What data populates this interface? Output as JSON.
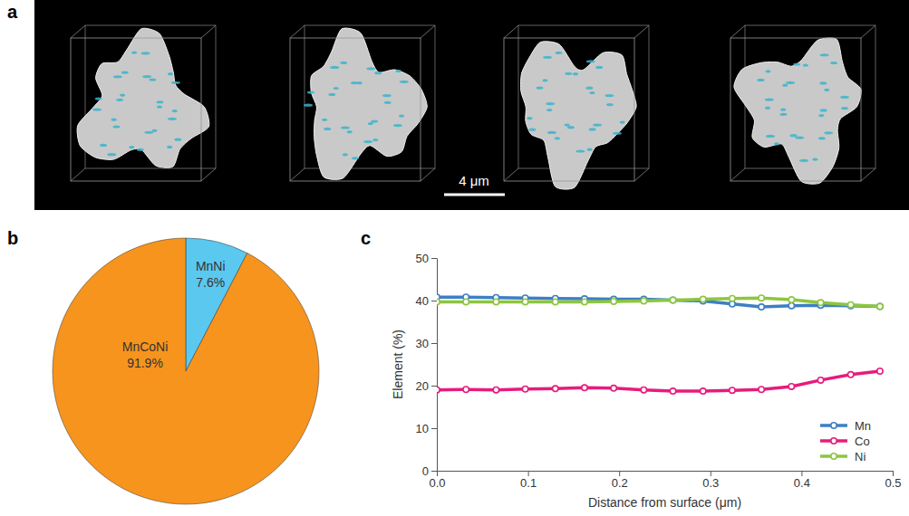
{
  "image_panel": {
    "label": "a",
    "scale_bar": "4 μm"
  },
  "chart_data": [
    {
      "type": "pie",
      "label": "b",
      "categories": [
        "MnNi",
        "MnCoNi"
      ],
      "values": [
        7.6,
        91.9
      ],
      "value_labels": [
        "7.6%",
        "91.9%"
      ],
      "colors": [
        "#5bc8f0",
        "#f7941d"
      ],
      "data_labels": true
    },
    {
      "type": "line",
      "label": "c",
      "x": [
        0,
        0.032,
        0.065,
        0.097,
        0.13,
        0.162,
        0.194,
        0.227,
        0.259,
        0.292,
        0.324,
        0.356,
        0.389,
        0.421,
        0.454,
        0.486
      ],
      "series": [
        {
          "name": "Mn",
          "color": "#3d7fc4",
          "marker": "circle",
          "values": [
            40.8,
            40.8,
            40.7,
            40.6,
            40.5,
            40.4,
            40.3,
            40.3,
            40.1,
            39.9,
            39.2,
            38.5,
            38.8,
            38.9,
            38.8,
            38.6
          ]
        },
        {
          "name": "Co",
          "color": "#e61c7d",
          "marker": "circle",
          "values": [
            19.0,
            19.1,
            19.0,
            19.2,
            19.3,
            19.5,
            19.4,
            19.0,
            18.7,
            18.7,
            18.9,
            19.1,
            19.8,
            21.3,
            22.6,
            23.4
          ]
        },
        {
          "name": "Ni",
          "color": "#8dc63f",
          "marker": "circle",
          "values": [
            39.7,
            39.7,
            39.7,
            39.7,
            39.7,
            39.7,
            39.8,
            39.9,
            40.1,
            40.3,
            40.5,
            40.6,
            40.2,
            39.5,
            39.0,
            38.6
          ]
        }
      ],
      "x_label": "Distance from surface (μm)",
      "y_label": "Element (%)",
      "xlim": [
        0,
        0.5
      ],
      "xticks": [
        {
          "value": 0,
          "label": "0.0"
        },
        0.1,
        0.2,
        0.3,
        0.4,
        0.5
      ],
      "ylim": [
        0,
        50
      ],
      "yticks": [
        0,
        10,
        20,
        30,
        40,
        50
      ],
      "grid": false,
      "legend": "lower right"
    }
  ]
}
